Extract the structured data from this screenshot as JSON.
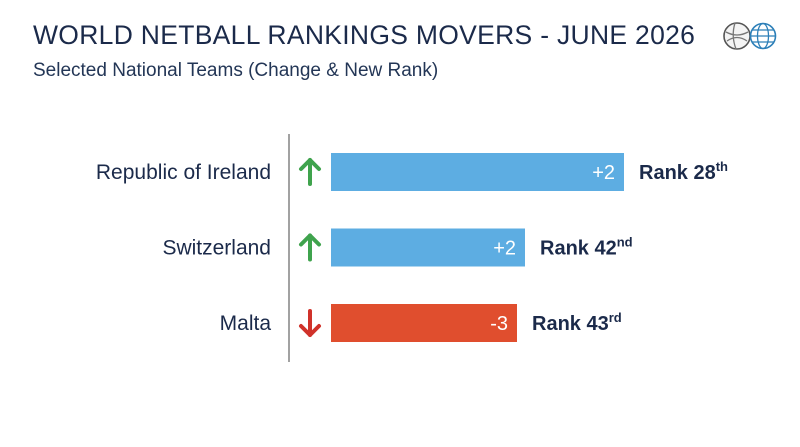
{
  "header": {
    "title": "WORLD NETBALL RANKINGS MOVERS - JUNE 2026",
    "subtitle": "Selected National Teams (Change & New Rank)"
  },
  "icons": [
    "netball-icon",
    "globe-icon"
  ],
  "colors": {
    "positive": "#5dade2",
    "negative": "#e04e2e",
    "arrow_up": "#3fa34d",
    "arrow_down": "#d0322a",
    "text": "#1b2a4a"
  },
  "chart_data": {
    "type": "bar",
    "orientation": "horizontal",
    "title": "WORLD NETBALL RANKINGS MOVERS - JUNE 2026",
    "subtitle": "Selected National Teams (Change & New Rank)",
    "categories": [
      "Republic of Ireland",
      "Switzerland",
      "Malta"
    ],
    "values": [
      2,
      2,
      -3
    ],
    "value_labels": [
      "+2",
      "+2",
      "-3"
    ],
    "direction": [
      "up",
      "up",
      "down"
    ],
    "rank_prefix": "Rank",
    "ranks": [
      28,
      42,
      43
    ],
    "rank_suffixes": [
      "th",
      "nd",
      "rd"
    ],
    "legend": "none",
    "grid": false
  }
}
